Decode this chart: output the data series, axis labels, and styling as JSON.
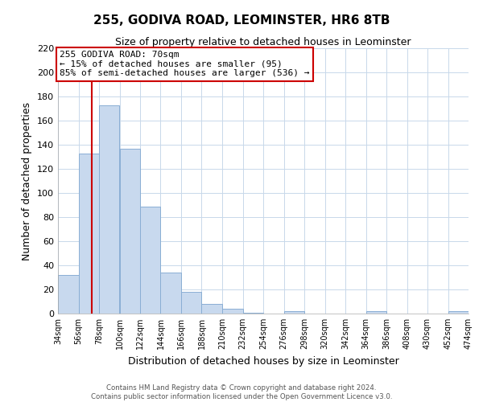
{
  "title": "255, GODIVA ROAD, LEOMINSTER, HR6 8TB",
  "subtitle": "Size of property relative to detached houses in Leominster",
  "xlabel": "Distribution of detached houses by size in Leominster",
  "ylabel": "Number of detached properties",
  "bar_edges": [
    34,
    56,
    78,
    100,
    122,
    144,
    166,
    188,
    210,
    232,
    254,
    276,
    298,
    320,
    342,
    364,
    386,
    408,
    430,
    452,
    474
  ],
  "bar_heights": [
    32,
    133,
    173,
    137,
    89,
    34,
    18,
    8,
    4,
    1,
    0,
    2,
    0,
    0,
    0,
    2,
    0,
    0,
    0,
    2
  ],
  "bar_color": "#c8d9ee",
  "bar_edgecolor": "#8aaed4",
  "vline_x": 70,
  "vline_color": "#cc0000",
  "ylim": [
    0,
    220
  ],
  "yticks": [
    0,
    20,
    40,
    60,
    80,
    100,
    120,
    140,
    160,
    180,
    200,
    220
  ],
  "xtick_labels": [
    "34sqm",
    "56sqm",
    "78sqm",
    "100sqm",
    "122sqm",
    "144sqm",
    "166sqm",
    "188sqm",
    "210sqm",
    "232sqm",
    "254sqm",
    "276sqm",
    "298sqm",
    "320sqm",
    "342sqm",
    "364sqm",
    "386sqm",
    "408sqm",
    "430sqm",
    "452sqm",
    "474sqm"
  ],
  "annotation_title": "255 GODIVA ROAD: 70sqm",
  "annotation_line1": "← 15% of detached houses are smaller (95)",
  "annotation_line2": "85% of semi-detached houses are larger (536) →",
  "annotation_box_color": "#ffffff",
  "annotation_box_edgecolor": "#cc0000",
  "footer_line1": "Contains HM Land Registry data © Crown copyright and database right 2024.",
  "footer_line2": "Contains public sector information licensed under the Open Government Licence v3.0.",
  "background_color": "#ffffff",
  "grid_color": "#c8d8ea"
}
